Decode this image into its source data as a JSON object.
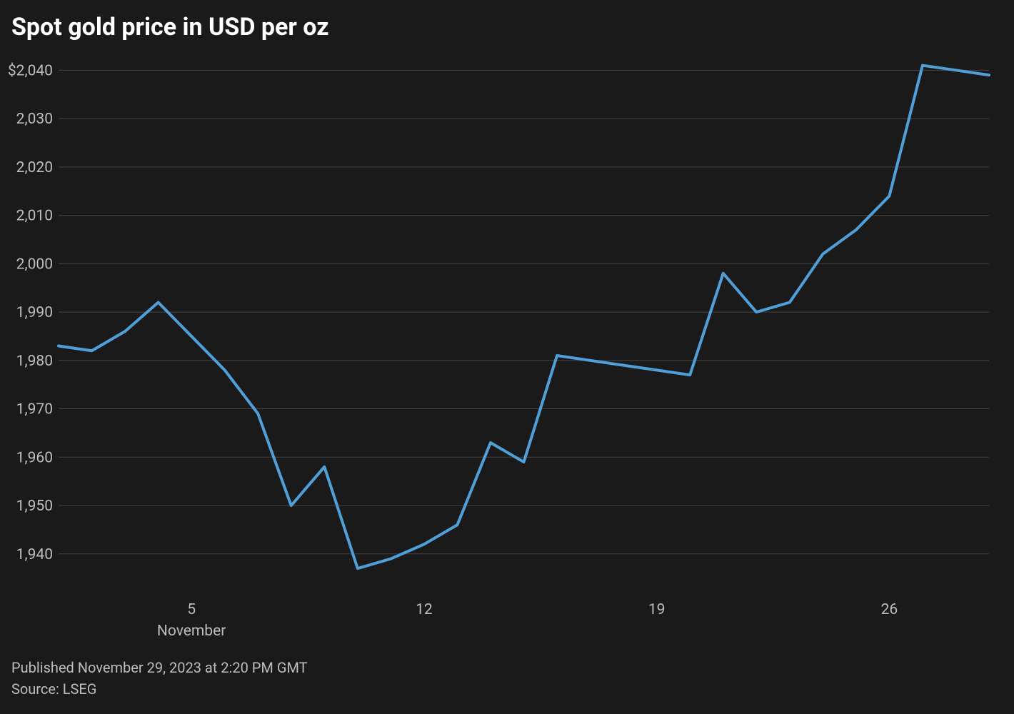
{
  "chart": {
    "type": "line",
    "title": "Spot gold price in USD per oz",
    "background_color": "#1a1a1a",
    "grid_color": "#444444",
    "axis_label_color": "#bdbdbd",
    "title_color": "#ffffff",
    "title_fontsize": 34,
    "axis_fontsize": 21,
    "month_label": "November",
    "line_color": "#4f9fd8",
    "line_width": 4,
    "y": {
      "min": 1932,
      "max": 2043,
      "ticks": [
        1940,
        1950,
        1960,
        1970,
        1980,
        1990,
        2000,
        2010,
        2020,
        2030,
        2040
      ],
      "tick_labels": [
        "1,940",
        "1,950",
        "1,960",
        "1,970",
        "1,980",
        "1,990",
        "2,000",
        "2,010",
        "2,020",
        "2,030",
        "$2,040"
      ]
    },
    "x": {
      "min": 1,
      "max": 29,
      "ticks": [
        5,
        12,
        19,
        26
      ],
      "tick_labels": [
        "5",
        "12",
        "19",
        "26"
      ]
    },
    "series": {
      "x": [
        1,
        2,
        3,
        4,
        5,
        6,
        7,
        8,
        9,
        10,
        11,
        12,
        13,
        14,
        15,
        16,
        17,
        18,
        19,
        20,
        21,
        22,
        23,
        24,
        25,
        26,
        27,
        28,
        29
      ],
      "y": [
        1983,
        1982,
        1986,
        1992,
        1985,
        1978,
        1969,
        1950,
        1958,
        1937,
        1939,
        1942,
        1946,
        1963,
        1959,
        1981,
        1980,
        1979,
        1978,
        1977,
        1998,
        1990,
        1992,
        2002,
        2007,
        2014,
        2041,
        2040,
        2039
      ]
    }
  },
  "footer": {
    "published": "Published November 29, 2023 at 2:20 PM GMT",
    "source": "Source: LSEG"
  }
}
